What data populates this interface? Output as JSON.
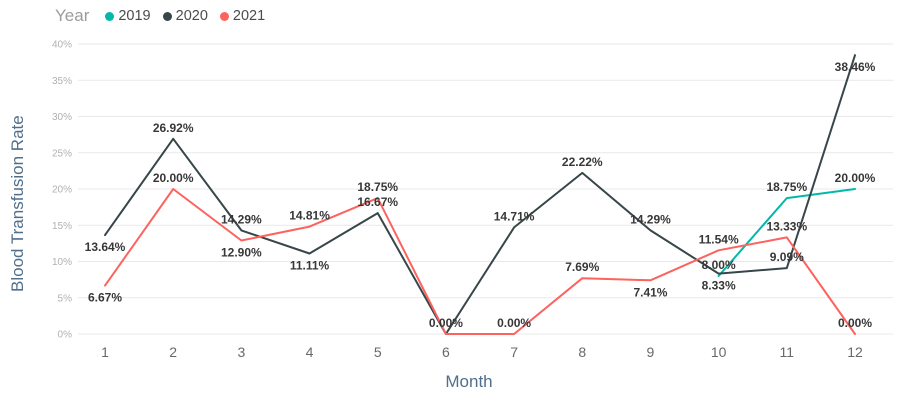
{
  "legend": {
    "title": "Year"
  },
  "axes": {
    "x_title": "Month",
    "y_title": "Blood Transfusion Rate"
  },
  "chart_data": {
    "type": "line",
    "title": "",
    "xlabel": "Month",
    "ylabel": "Blood Transfusion Rate",
    "categories": [
      "1",
      "2",
      "3",
      "4",
      "5",
      "6",
      "7",
      "8",
      "9",
      "10",
      "11",
      "12"
    ],
    "ylim": [
      0,
      40
    ],
    "yticks": [
      0,
      5,
      10,
      15,
      20,
      25,
      30,
      35,
      40
    ],
    "ytick_suffix": "%",
    "grid": true,
    "legend_position": "top-left",
    "series": [
      {
        "name": "2019",
        "color": "#01b8aa",
        "values": [
          null,
          null,
          null,
          null,
          null,
          null,
          null,
          null,
          null,
          8.0,
          18.75,
          20.0
        ],
        "labels": [
          null,
          null,
          null,
          null,
          null,
          null,
          null,
          null,
          null,
          "8.00%",
          "18.75%",
          "20.00%"
        ],
        "label_pos": [
          null,
          null,
          null,
          null,
          null,
          null,
          null,
          null,
          null,
          "above",
          "above",
          "above"
        ]
      },
      {
        "name": "2020",
        "color": "#374649",
        "values": [
          13.64,
          26.92,
          14.29,
          11.11,
          16.67,
          0,
          14.71,
          22.22,
          14.29,
          8.33,
          9.09,
          38.46
        ],
        "labels": [
          "13.64%",
          "26.92%",
          "14.29%",
          "11.11%",
          "16.67%",
          null,
          "14.71%",
          "22.22%",
          "14.29%",
          "8.33%",
          "9.09%",
          "38.46%"
        ],
        "label_pos": [
          "below",
          "above",
          "above",
          "below",
          "above",
          null,
          "above",
          "above",
          "above",
          "below",
          "above",
          "below"
        ]
      },
      {
        "name": "2021",
        "color": "#fd625e",
        "values": [
          6.67,
          20.0,
          12.9,
          14.81,
          18.75,
          0,
          0,
          7.69,
          7.41,
          11.54,
          13.33,
          0
        ],
        "labels": [
          "6.67%",
          "20.00%",
          "12.90%",
          "14.81%",
          "18.75%",
          "0.00%",
          "0.00%",
          "7.69%",
          "7.41%",
          "11.54%",
          "13.33%",
          "0.00%"
        ],
        "label_pos": [
          "below",
          "above",
          "below",
          "above",
          "above",
          "above",
          "above",
          "above",
          "below",
          "above",
          "above",
          "above"
        ]
      }
    ]
  },
  "styles": {
    "grid_color": "#e9e9e9",
    "ytick_color": "#b3b0ae",
    "xtick_color": "#686868",
    "label_color": "#373737",
    "axis_title_color": "#506f8a",
    "legend_title_color": "#9c9c9c",
    "legend_item_color": "#4b4b4b"
  }
}
